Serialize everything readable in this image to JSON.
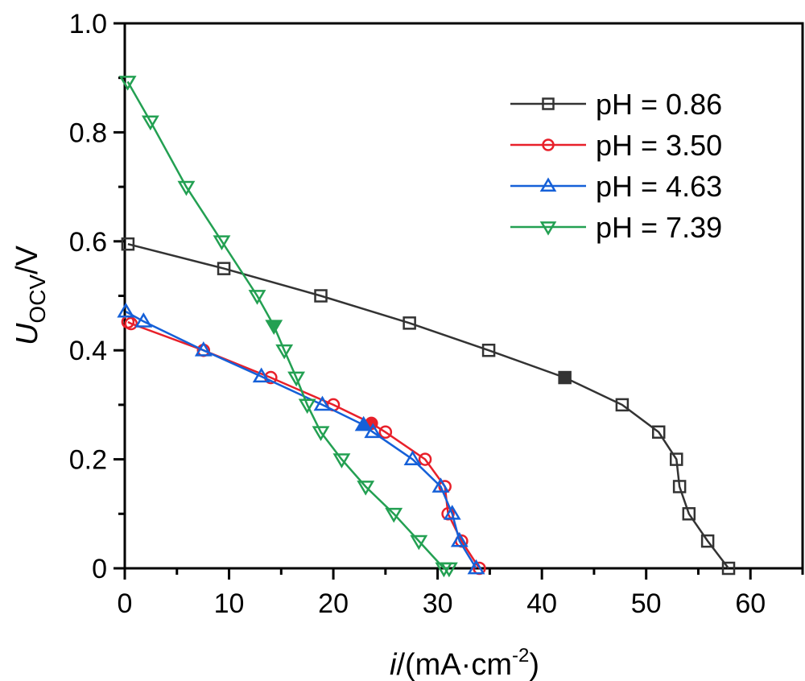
{
  "chart_data": {
    "type": "line",
    "title": "",
    "xlabel": {
      "italic": "i",
      "rest": "/(mA·cm",
      "sup": "-2",
      "close": ")"
    },
    "ylabel": {
      "italic": "U",
      "sub": "OCV",
      "rest": "/V"
    },
    "xlim": [
      0,
      65
    ],
    "ylim": [
      0,
      1.0
    ],
    "xticks": [
      0,
      10,
      20,
      30,
      40,
      50,
      60
    ],
    "xtick_labels": [
      "0",
      "10",
      "20",
      "30",
      "40",
      "50",
      "60"
    ],
    "xminor": [
      5,
      15,
      25,
      35,
      45,
      55,
      65
    ],
    "yticks": [
      0,
      0.2,
      0.4,
      0.6,
      0.8,
      1.0
    ],
    "ytick_labels": [
      "0",
      "0.2",
      "0.4",
      "0.6",
      "0.8",
      "1.0"
    ],
    "yminor": [
      0.1,
      0.3,
      0.5,
      0.7,
      0.9
    ],
    "grid": false,
    "legend_position": "top-right",
    "series": [
      {
        "name": "pH = 0.86",
        "color": "#333333",
        "marker": "square",
        "points": [
          [
            0.3,
            0.595
          ],
          [
            9.5,
            0.55
          ],
          [
            18.8,
            0.5
          ],
          [
            27.3,
            0.45
          ],
          [
            34.9,
            0.4
          ],
          [
            42.2,
            0.35
          ],
          [
            47.7,
            0.3
          ],
          [
            51.2,
            0.25
          ],
          [
            52.9,
            0.2
          ],
          [
            53.2,
            0.15
          ],
          [
            54.1,
            0.1
          ],
          [
            55.9,
            0.05
          ],
          [
            57.9,
            0.0
          ]
        ],
        "filled_index": 5
      },
      {
        "name": "pH = 3.50",
        "color": "#e8202a",
        "marker": "circle",
        "points": [
          [
            0.3,
            0.452
          ],
          [
            0.6,
            0.449
          ],
          [
            7.55,
            0.4
          ],
          [
            14.0,
            0.35
          ],
          [
            20.0,
            0.3
          ],
          [
            23.65,
            0.266
          ],
          [
            25.0,
            0.25
          ],
          [
            28.8,
            0.2
          ],
          [
            30.7,
            0.15
          ],
          [
            31.0,
            0.1
          ],
          [
            32.3,
            0.05
          ],
          [
            34.0,
            0.0
          ]
        ],
        "filled_index": 5
      },
      {
        "name": "pH = 4.63",
        "color": "#1560d8",
        "marker": "triangle-up",
        "points": [
          [
            0.1,
            0.471
          ],
          [
            1.8,
            0.453
          ],
          [
            7.55,
            0.4
          ],
          [
            13.1,
            0.352
          ],
          [
            18.95,
            0.3
          ],
          [
            22.9,
            0.263
          ],
          [
            23.8,
            0.25
          ],
          [
            27.6,
            0.2
          ],
          [
            30.3,
            0.15
          ],
          [
            31.4,
            0.1
          ],
          [
            32.1,
            0.05
          ],
          [
            33.7,
            0.0
          ]
        ],
        "filled_index": 5
      },
      {
        "name": "pH = 7.39",
        "color": "#23a052",
        "marker": "triangle-down",
        "points": [
          [
            0.28,
            0.893
          ],
          [
            2.46,
            0.82
          ],
          [
            5.9,
            0.7
          ],
          [
            9.3,
            0.6
          ],
          [
            12.7,
            0.5
          ],
          [
            14.3,
            0.445
          ],
          [
            15.3,
            0.4
          ],
          [
            16.45,
            0.35
          ],
          [
            17.5,
            0.3
          ],
          [
            18.8,
            0.25
          ],
          [
            20.8,
            0.2
          ],
          [
            23.1,
            0.15
          ],
          [
            25.8,
            0.1
          ],
          [
            28.2,
            0.05
          ],
          [
            30.6,
            0.0
          ],
          [
            31.1,
            0.0
          ]
        ],
        "filled_index": 5
      }
    ]
  }
}
